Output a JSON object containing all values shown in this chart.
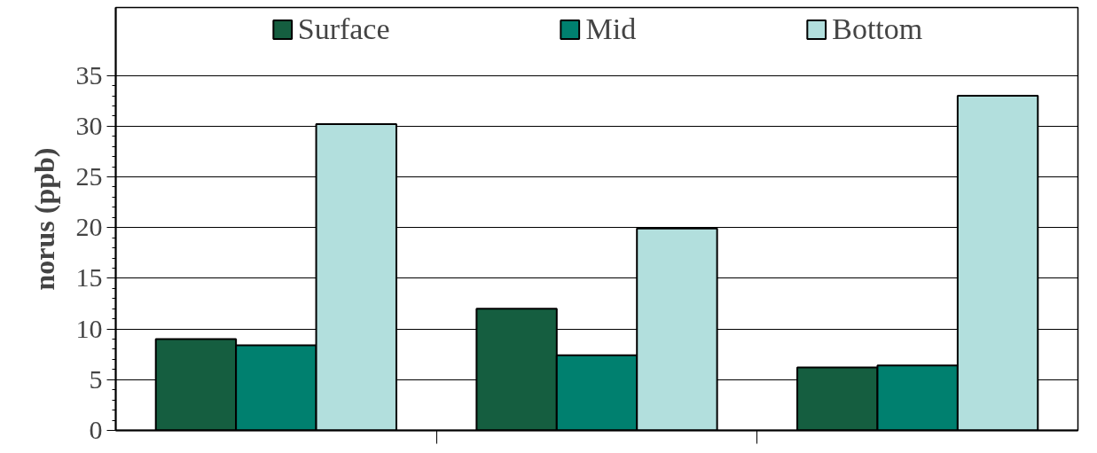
{
  "chart_data": {
    "type": "bar",
    "ylabel": "norus (ppb)",
    "categories": [
      null,
      null,
      null
    ],
    "series": [
      {
        "name": "Surface",
        "color": "#155e40",
        "values": [
          9,
          12,
          6.2
        ]
      },
      {
        "name": "Mid",
        "color": "#00806f",
        "values": [
          8.4,
          7.4,
          6.4
        ]
      },
      {
        "name": "Bottom",
        "color": "#b2dfdd",
        "values": [
          30.2,
          19.9,
          33.0
        ]
      }
    ],
    "ylim": [
      0,
      41.7
    ],
    "yticks": [
      0,
      5,
      10,
      15,
      20,
      25,
      30,
      35
    ],
    "grid": "y",
    "legend": "top"
  }
}
